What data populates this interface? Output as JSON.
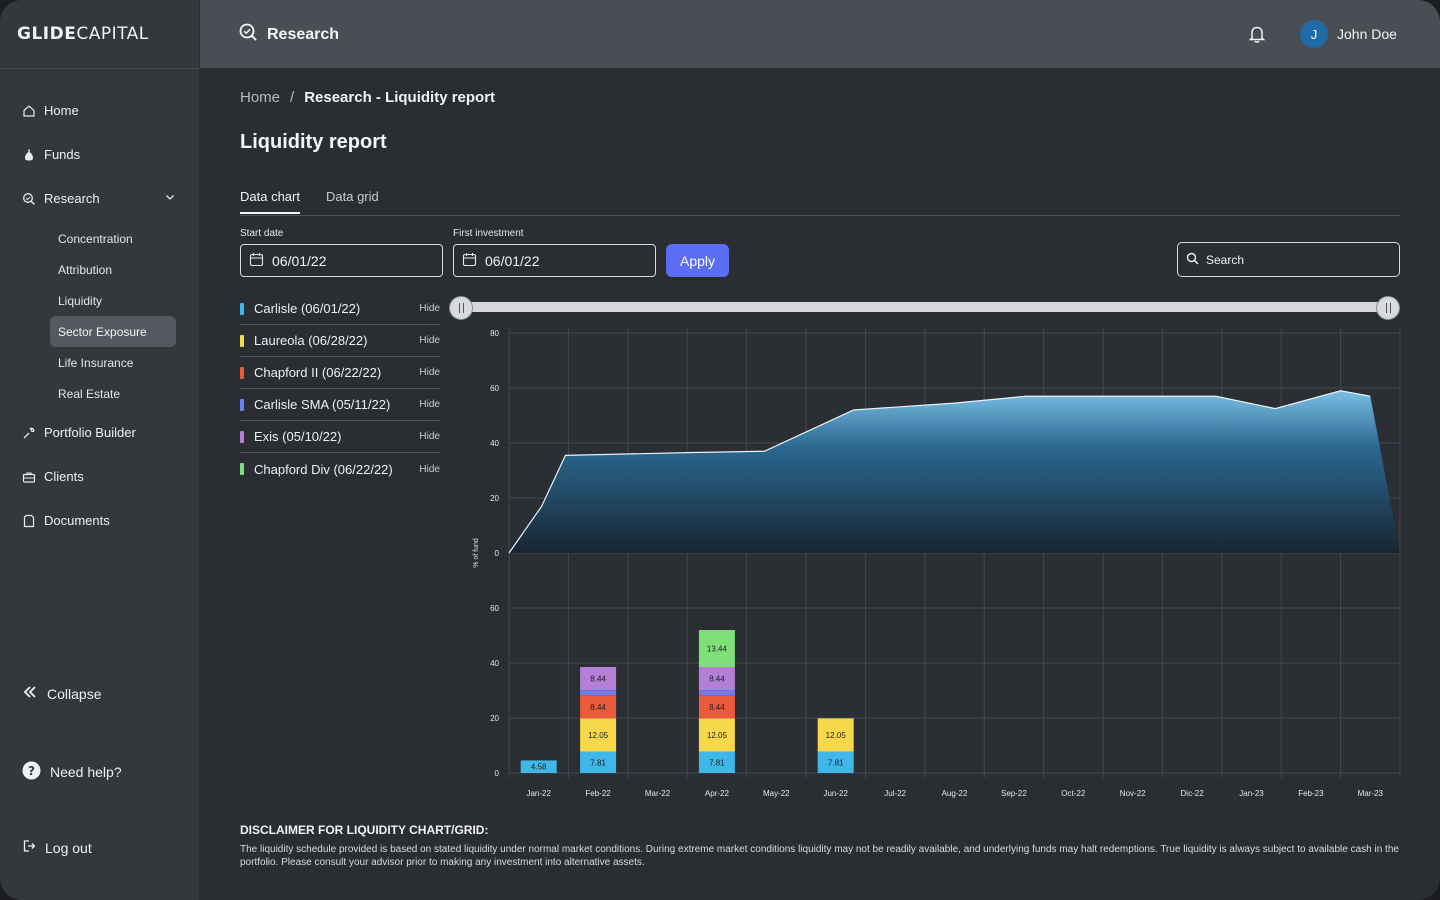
{
  "brand": {
    "logo_bold": "GLIDE",
    "logo_light": "CAPITAL"
  },
  "header": {
    "section_title": "Research",
    "user_initial": "J",
    "user_name": "John Doe"
  },
  "sidebar": {
    "items": [
      {
        "label": "Home",
        "icon": "home-icon"
      },
      {
        "label": "Funds",
        "icon": "money-bag-icon"
      },
      {
        "label": "Research",
        "icon": "research-icon"
      },
      {
        "label": "Portfolio Builder",
        "icon": "wrench-icon"
      },
      {
        "label": "Clients",
        "icon": "briefcase-icon"
      },
      {
        "label": "Documents",
        "icon": "document-icon"
      }
    ],
    "research_sub": [
      "Concentration",
      "Attribution",
      "Liquidity",
      "Sector Exposure",
      "Life Insurance",
      "Real Estate"
    ],
    "active_sub": "Sector Exposure",
    "collapse_label": "Collapse",
    "help_label": "Need help?",
    "logout_label": "Log out"
  },
  "breadcrumb": {
    "home": "Home",
    "separator": "/",
    "current": "Research - Liquidity report"
  },
  "page_title": "Liquidity report",
  "tabs": [
    {
      "label": "Data chart",
      "active": true
    },
    {
      "label": "Data grid",
      "active": false
    }
  ],
  "filters": {
    "start_date_label": "Start date",
    "start_date": "06/01/22",
    "first_investment_label": "First investment",
    "first_investment": "06/01/22",
    "apply_label": "Apply",
    "search_placeholder": "Search"
  },
  "legend": {
    "hide_label": "Hide",
    "items": [
      {
        "label": "Carlisle (06/01/22)",
        "color": "#3fb7e8"
      },
      {
        "label": "Laureola (06/28/22)",
        "color": "#f6d84a"
      },
      {
        "label": "Chapford II (06/22/22)",
        "color": "#ea5a3c"
      },
      {
        "label": "Carlisle SMA (05/11/22)",
        "color": "#6f7cf0"
      },
      {
        "label": "Exis (05/10/22)",
        "color": "#b57fd8"
      },
      {
        "label": "Chapford Div (06/22/22)",
        "color": "#7fe07a"
      }
    ]
  },
  "chart_data": [
    {
      "type": "area",
      "ylabel": "% of fund",
      "ylim": [
        0,
        80
      ],
      "yticks": [
        0,
        20,
        40,
        60,
        80
      ],
      "x": [
        "Jan-22",
        "Feb-22",
        "Mar-22",
        "Apr-22",
        "May-22",
        "Jun-22",
        "Jul-22",
        "Aug-22",
        "Sep-22",
        "Oct-22",
        "Nov-22",
        "Dic-22",
        "Jan-23",
        "Feb-23",
        "Mar-23"
      ],
      "points": [
        {
          "x": 0,
          "y": 0
        },
        {
          "x": 0.55,
          "y": 17
        },
        {
          "x": 0.95,
          "y": 35.5
        },
        {
          "x": 3.0,
          "y": 36.5
        },
        {
          "x": 4.3,
          "y": 37
        },
        {
          "x": 5.8,
          "y": 52
        },
        {
          "x": 7.5,
          "y": 54.5
        },
        {
          "x": 8.7,
          "y": 57
        },
        {
          "x": 10.0,
          "y": 57
        },
        {
          "x": 11.9,
          "y": 57
        },
        {
          "x": 12.9,
          "y": 52.5
        },
        {
          "x": 14.0,
          "y": 59
        },
        {
          "x": 14.5,
          "y": 57
        }
      ]
    },
    {
      "type": "bar",
      "stacked": true,
      "ylim": [
        0,
        80
      ],
      "yticks": [
        0,
        20,
        40,
        60
      ],
      "categories": [
        "Jan-22",
        "Feb-22",
        "Mar-22",
        "Apr-22",
        "May-22",
        "Jun-22",
        "Jul-22",
        "Aug-22",
        "Sep-22",
        "Oct-22",
        "Nov-22",
        "Dic-22",
        "Jan-23",
        "Feb-23",
        "Mar-23"
      ],
      "series": [
        {
          "name": "Carlisle (06/01/22)",
          "values": [
            4.58,
            7.81,
            0,
            7.81,
            0,
            7.81,
            0,
            0,
            0,
            0,
            0,
            0,
            0,
            0,
            0
          ]
        },
        {
          "name": "Laureola (06/28/22)",
          "values": [
            0,
            12.05,
            0,
            12.05,
            0,
            12.05,
            0,
            0,
            0,
            0,
            0,
            0,
            0,
            0,
            0
          ]
        },
        {
          "name": "Chapford II (06/22/22)",
          "values": [
            0,
            8.44,
            0,
            8.44,
            0,
            0,
            0,
            0,
            0,
            0,
            0,
            0,
            0,
            0,
            0
          ]
        },
        {
          "name": "Carlisle SMA (05/11/22)",
          "values": [
            0,
            1.8,
            0,
            1.8,
            0,
            0,
            0,
            0,
            0,
            0,
            0,
            0,
            0,
            0,
            0
          ]
        },
        {
          "name": "Exis (05/10/22)",
          "values": [
            0,
            8.44,
            0,
            8.44,
            0,
            0,
            0,
            0,
            0,
            0,
            0,
            0,
            0,
            0,
            0
          ]
        },
        {
          "name": "Chapford Div (06/22/22)",
          "values": [
            0,
            0,
            0,
            13.44,
            0,
            0,
            0,
            0,
            0,
            0,
            0,
            0,
            0,
            0,
            0
          ]
        }
      ]
    }
  ],
  "disclaimer": {
    "title": "DISCLAIMER FOR LIQUIDITY CHART/GRID:",
    "text": "The liquidity schedule provided is based on stated liquidity under normal market conditions. During extreme market conditions liquidity may not be readily available, and underlying funds may halt redemptions. True liquidity is always subject to available cash in the portfolio. Please consult your advisor prior to making any investment into alternative assets."
  }
}
